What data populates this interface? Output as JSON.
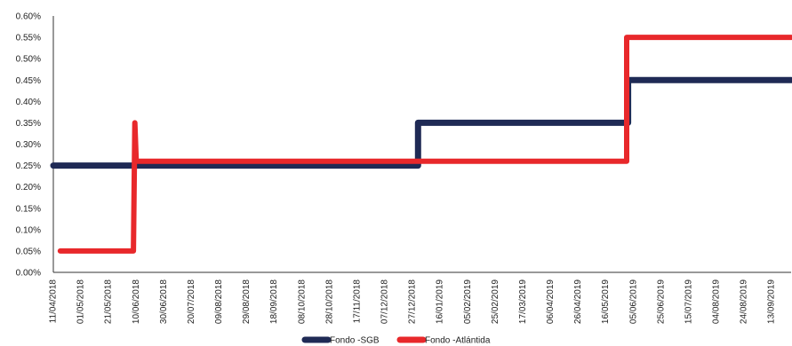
{
  "chart_data": {
    "type": "line",
    "title": "",
    "xlabel": "",
    "ylabel": "",
    "ylim": [
      0,
      0.6
    ],
    "y_ticks": [
      "0.00%",
      "0.05%",
      "0.10%",
      "0.15%",
      "0.20%",
      "0.25%",
      "0.30%",
      "0.35%",
      "0.40%",
      "0.45%",
      "0.50%",
      "0.55%",
      "0.60%"
    ],
    "x_ticks": [
      "11/04/2018",
      "01/05/2018",
      "21/05/2018",
      "10/06/2018",
      "30/06/2018",
      "20/07/2018",
      "09/08/2018",
      "29/08/2018",
      "18/09/2018",
      "08/10/2018",
      "28/10/2018",
      "17/11/2018",
      "07/12/2018",
      "27/12/2018",
      "16/01/2019",
      "05/02/2019",
      "25/02/2019",
      "17/03/2019",
      "06/04/2019",
      "26/04/2019",
      "16/05/2019",
      "05/06/2019",
      "25/06/2019",
      "15/07/2019",
      "04/08/2019",
      "24/08/2019",
      "13/09/2019"
    ],
    "x_range": [
      "11/04/2018",
      "27/09/2019"
    ],
    "grid": false,
    "legend": "bottom",
    "series": [
      {
        "name": "Fondo -SGB",
        "color": "#1f2a55",
        "points": [
          [
            "11/04/2018",
            0.25
          ],
          [
            "31/12/2018",
            0.25
          ],
          [
            "31/12/2018",
            0.35
          ],
          [
            "01/06/2019",
            0.35
          ],
          [
            "01/06/2019",
            0.45
          ],
          [
            "27/09/2019",
            0.45
          ]
        ]
      },
      {
        "name": "Fondo -Atlántida",
        "color": "#e8282b",
        "points": [
          [
            "16/04/2018",
            0.05
          ],
          [
            "08/06/2018",
            0.05
          ],
          [
            "09/06/2018",
            0.35
          ],
          [
            "10/06/2018",
            0.26
          ],
          [
            "31/05/2019",
            0.26
          ],
          [
            "31/05/2019",
            0.55
          ],
          [
            "27/09/2019",
            0.55
          ]
        ]
      }
    ]
  }
}
